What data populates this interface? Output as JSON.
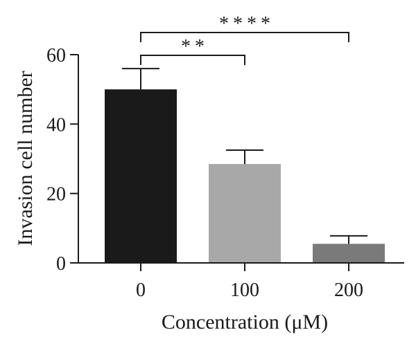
{
  "chart_data": {
    "type": "bar",
    "categories": [
      "0",
      "100",
      "200"
    ],
    "values": [
      50,
      28.5,
      5.5
    ],
    "errors": [
      6,
      4,
      2.3
    ],
    "colors": [
      "#1a1a1a",
      "#a8a8a8",
      "#7a7a7a"
    ],
    "xlabel": "Concentration (μM)",
    "ylabel": "Invasion cell number",
    "ylim": [
      0,
      60
    ],
    "yticks": [
      0,
      20,
      40,
      60
    ],
    "grid": false,
    "significance": [
      {
        "from": 0,
        "to": 1,
        "label": "**",
        "level": 1
      },
      {
        "from": 0,
        "to": 2,
        "label": "****",
        "level": 2
      }
    ]
  }
}
